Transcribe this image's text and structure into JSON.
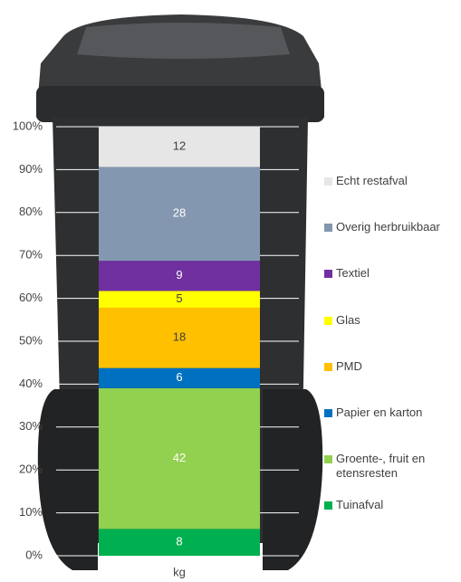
{
  "chart_data": {
    "type": "bar",
    "stacking": "percent",
    "categories": [
      "kg"
    ],
    "series": [
      {
        "name": "Tuinafval",
        "color": "#00b050",
        "values": [
          8
        ]
      },
      {
        "name": "Groente-, fruit en etensresten",
        "color": "#92d050",
        "values": [
          42
        ]
      },
      {
        "name": "Papier en karton",
        "color": "#0070c0",
        "values": [
          6
        ]
      },
      {
        "name": "PMD",
        "color": "#ffc000",
        "values": [
          18
        ]
      },
      {
        "name": "Glas",
        "color": "#ffff00",
        "values": [
          5
        ]
      },
      {
        "name": "Textiel",
        "color": "#7030a0",
        "values": [
          9
        ]
      },
      {
        "name": "Overig herbruikbaar",
        "color": "#8497b0",
        "values": [
          28
        ]
      },
      {
        "name": "Echt restafval",
        "color": "#e7e6e6",
        "values": [
          12
        ]
      }
    ],
    "ylim": [
      0,
      100
    ],
    "yticks": [
      {
        "value": 0,
        "label": "0%"
      },
      {
        "value": 10,
        "label": "10%"
      },
      {
        "value": 20,
        "label": "20%"
      },
      {
        "value": 30,
        "label": "30%"
      },
      {
        "value": 40,
        "label": "40%"
      },
      {
        "value": 50,
        "label": "50%"
      },
      {
        "value": 60,
        "label": "60%"
      },
      {
        "value": 70,
        "label": "70%"
      },
      {
        "value": 80,
        "label": "80%"
      },
      {
        "value": 90,
        "label": "90%"
      },
      {
        "value": 100,
        "label": "100%"
      }
    ],
    "grid": true,
    "legend": "right"
  }
}
